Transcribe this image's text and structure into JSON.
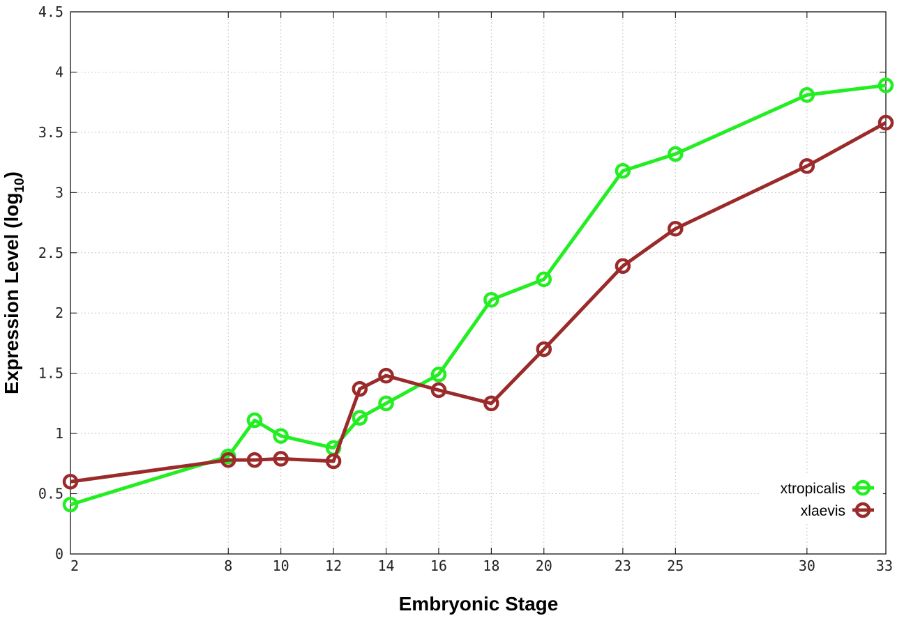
{
  "chart_data": {
    "type": "line",
    "xlabel": "Embryonic Stage",
    "ylabel_main": "Expression Level (log",
    "ylabel_sub": "10",
    "ylabel_close": ")",
    "xlim": [
      2,
      33
    ],
    "ylim": [
      0,
      4.5
    ],
    "x_ticks": [
      2,
      8,
      10,
      12,
      14,
      16,
      18,
      20,
      23,
      25,
      30,
      33
    ],
    "y_ticks": [
      0,
      0.5,
      1,
      1.5,
      2,
      2.5,
      3,
      3.5,
      4,
      4.5
    ],
    "grid": true,
    "legend_position": "bottom-right",
    "series": [
      {
        "name": "xtropicalis",
        "color": "#22ee22",
        "x": [
          2,
          8,
          9,
          10,
          12,
          13,
          14,
          16,
          18,
          20,
          23,
          25,
          30,
          33
        ],
        "y": [
          0.41,
          0.81,
          1.11,
          0.98,
          0.88,
          1.13,
          1.25,
          1.49,
          2.11,
          2.28,
          3.18,
          3.32,
          3.81,
          3.89
        ]
      },
      {
        "name": "xlaevis",
        "color": "#9b2a2a",
        "x": [
          2,
          8,
          9,
          10,
          12,
          13,
          14,
          16,
          18,
          20,
          23,
          25,
          30,
          33
        ],
        "y": [
          0.6,
          0.78,
          0.78,
          0.79,
          0.77,
          1.37,
          1.48,
          1.36,
          1.25,
          1.7,
          2.39,
          2.7,
          3.22,
          3.58
        ]
      }
    ]
  }
}
